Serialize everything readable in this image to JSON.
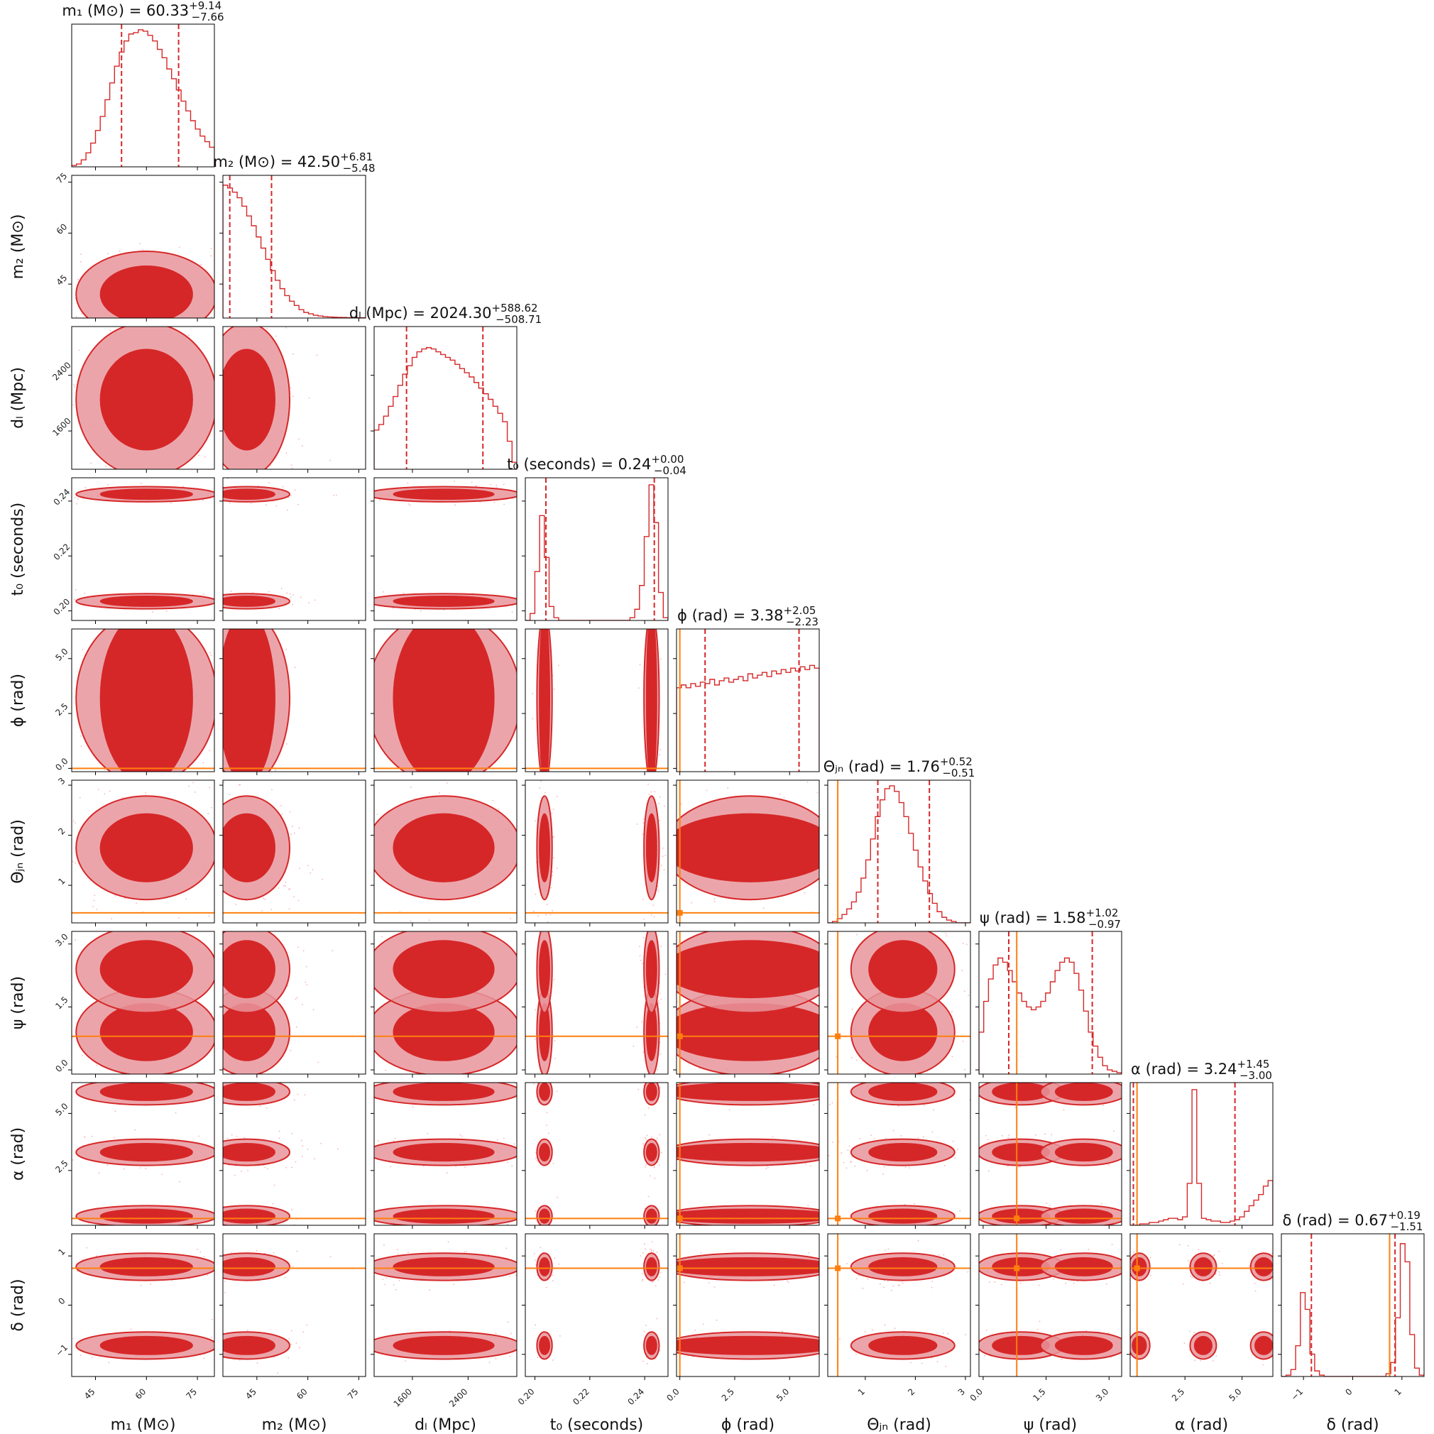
{
  "chart_data": {
    "type": "corner",
    "parameters": [
      {
        "key": "m1",
        "label": "m₁ (M⊙)",
        "title": {
          "main": "m₁ (M⊙) = 60.33",
          "plus": "+9.14",
          "minus": "−7.66"
        },
        "median": 60.33,
        "quantiles": [
          52.67,
          69.47
        ],
        "range": [
          38,
          80
        ],
        "ticks": [
          45,
          60,
          75
        ],
        "tick_labels": [
          "45",
          "60",
          "75"
        ]
      },
      {
        "key": "m2",
        "label": "m₂ (M⊙)",
        "title": {
          "main": "m₂ (M⊙) = 42.50",
          "plus": "+6.81",
          "minus": "−5.48"
        },
        "median": 42.5,
        "quantiles": [
          37.02,
          49.31
        ],
        "range": [
          35,
          77
        ],
        "ticks": [
          45,
          60,
          75
        ],
        "tick_labels": [
          "45",
          "60",
          "75"
        ]
      },
      {
        "key": "dL",
        "label": "dₗ (Mpc)",
        "title": {
          "main": "dₗ (Mpc) = 2024.30",
          "plus": "+588.62",
          "minus": "−508.71"
        },
        "median": 2024.3,
        "quantiles": [
          1515.59,
          2612.92
        ],
        "range": [
          1050,
          3100
        ],
        "ticks": [
          1600,
          2400
        ],
        "tick_labels": [
          "1600",
          "2400"
        ]
      },
      {
        "key": "t0",
        "label": "t₀ (seconds)",
        "title": {
          "main": "t₀ (seconds) = 0.24",
          "plus": "+0.00",
          "minus": "−0.04"
        },
        "median": 0.24,
        "quantiles": [
          0.204,
          0.2435
        ],
        "range": [
          0.1965,
          0.2485
        ],
        "ticks": [
          0.2,
          0.22,
          0.24
        ],
        "tick_labels": [
          "0.20",
          "0.22",
          "0.24"
        ]
      },
      {
        "key": "phi",
        "label": "ϕ (rad)",
        "title": {
          "main": "ϕ (rad) = 3.38",
          "plus": "+2.05",
          "minus": "−2.23"
        },
        "median": 3.38,
        "quantiles": [
          1.15,
          5.43
        ],
        "range": [
          -0.15,
          6.35
        ],
        "ticks": [
          0.0,
          2.5,
          5.0
        ],
        "tick_labels": [
          "0.0",
          "2.5",
          "5.0"
        ]
      },
      {
        "key": "theta_jn",
        "label": "Θⱼₙ (rad)",
        "title": {
          "main": "Θⱼₙ (rad) = 1.76",
          "plus": "+0.52",
          "minus": "−0.51"
        },
        "median": 1.76,
        "quantiles": [
          1.25,
          2.28
        ],
        "range": [
          0.25,
          3.1
        ],
        "ticks": [
          1,
          2,
          3
        ],
        "tick_labels": [
          "1",
          "2",
          "3"
        ]
      },
      {
        "key": "psi",
        "label": "ψ (rad)",
        "title": {
          "main": "ψ (rad) = 1.58",
          "plus": "+1.02",
          "minus": "−0.97"
        },
        "median": 1.58,
        "quantiles": [
          0.61,
          2.6
        ],
        "range": [
          -0.1,
          3.3
        ],
        "ticks": [
          0.0,
          1.5,
          3.0
        ],
        "tick_labels": [
          "0.0",
          "1.5",
          "3.0"
        ]
      },
      {
        "key": "alpha",
        "label": "α (rad)",
        "title": {
          "main": "α (rad) = 3.24",
          "plus": "+1.45",
          "minus": "−3.00"
        },
        "median": 3.24,
        "quantiles": [
          0.24,
          4.69
        ],
        "range": [
          0.1,
          6.35
        ],
        "ticks": [
          2.5,
          5.0
        ],
        "tick_labels": [
          "2.5",
          "5.0"
        ]
      },
      {
        "key": "delta",
        "label": "δ (rad)",
        "title": {
          "main": "δ (rad) = 0.67",
          "plus": "+0.19",
          "minus": "−1.51"
        },
        "median": 0.67,
        "quantiles": [
          -0.84,
          0.86
        ],
        "range": [
          -1.45,
          1.45
        ],
        "ticks": [
          -1,
          0,
          1
        ],
        "tick_labels": [
          "−1",
          "0",
          "1"
        ]
      }
    ],
    "truths": {
      "phi": 0.0,
      "theta_jn": 0.45,
      "psi": 0.8,
      "alpha": 0.4,
      "delta": 0.75
    },
    "histograms": {
      "m1": [
        0.01,
        0.02,
        0.05,
        0.1,
        0.17,
        0.26,
        0.36,
        0.48,
        0.6,
        0.72,
        0.82,
        0.9,
        0.95,
        0.96,
        0.98,
        0.97,
        0.94,
        0.9,
        0.84,
        0.78,
        0.7,
        0.63,
        0.55,
        0.47,
        0.4,
        0.33,
        0.27,
        0.22,
        0.18,
        0.14
      ],
      "m2": [
        0.95,
        0.93,
        0.9,
        0.86,
        0.8,
        0.73,
        0.66,
        0.58,
        0.5,
        0.42,
        0.34,
        0.27,
        0.21,
        0.16,
        0.12,
        0.09,
        0.06,
        0.04,
        0.03,
        0.02,
        0.015,
        0.01,
        0.008,
        0.006,
        0.005,
        0.004,
        0.003,
        0.003,
        0.002,
        0.002
      ],
      "dL": [
        0.28,
        0.32,
        0.38,
        0.45,
        0.52,
        0.6,
        0.68,
        0.74,
        0.8,
        0.84,
        0.86,
        0.87,
        0.86,
        0.84,
        0.82,
        0.8,
        0.78,
        0.75,
        0.72,
        0.69,
        0.66,
        0.62,
        0.58,
        0.54,
        0.5,
        0.45,
        0.4,
        0.34,
        0.2,
        0.05
      ],
      "t0": [
        0.0,
        0.05,
        0.35,
        0.75,
        0.45,
        0.1,
        0.02,
        0.0,
        0.0,
        0.0,
        0.0,
        0.0,
        0.0,
        0.0,
        0.0,
        0.0,
        0.0,
        0.0,
        0.0,
        0.0,
        0.0,
        0.0,
        0.02,
        0.08,
        0.25,
        0.6,
        0.97,
        0.7,
        0.2,
        0.02
      ],
      "phi": [
        0.6,
        0.62,
        0.6,
        0.63,
        0.61,
        0.64,
        0.63,
        0.66,
        0.62,
        0.65,
        0.67,
        0.64,
        0.66,
        0.68,
        0.65,
        0.7,
        0.67,
        0.69,
        0.71,
        0.68,
        0.72,
        0.7,
        0.73,
        0.71,
        0.74,
        0.72,
        0.75,
        0.73,
        0.76,
        0.74
      ],
      "theta_jn": [
        0.0,
        0.01,
        0.03,
        0.06,
        0.1,
        0.15,
        0.22,
        0.32,
        0.45,
        0.6,
        0.76,
        0.88,
        0.96,
        0.98,
        0.94,
        0.86,
        0.76,
        0.64,
        0.52,
        0.4,
        0.3,
        0.21,
        0.14,
        0.08,
        0.04,
        0.02,
        0.01,
        0.0,
        0.0,
        0.0
      ],
      "psi": [
        0.3,
        0.52,
        0.68,
        0.78,
        0.83,
        0.8,
        0.74,
        0.66,
        0.58,
        0.52,
        0.48,
        0.46,
        0.48,
        0.52,
        0.58,
        0.66,
        0.74,
        0.8,
        0.83,
        0.8,
        0.72,
        0.6,
        0.45,
        0.3,
        0.2,
        0.12,
        0.06,
        0.03,
        0.02,
        0.01
      ],
      "alpha": [
        0.0,
        0.0,
        0.01,
        0.01,
        0.02,
        0.02,
        0.03,
        0.04,
        0.05,
        0.05,
        0.04,
        0.06,
        0.3,
        0.97,
        0.3,
        0.05,
        0.04,
        0.03,
        0.03,
        0.02,
        0.02,
        0.03,
        0.04,
        0.06,
        0.1,
        0.14,
        0.18,
        0.22,
        0.28,
        0.32
      ],
      "delta": [
        0.0,
        0.01,
        0.05,
        0.22,
        0.6,
        0.48,
        0.16,
        0.04,
        0.01,
        0.0,
        0.0,
        0.0,
        0.0,
        0.0,
        0.0,
        0.0,
        0.0,
        0.0,
        0.0,
        0.0,
        0.0,
        0.0,
        0.02,
        0.1,
        0.42,
        0.95,
        0.82,
        0.3,
        0.06,
        0.01
      ]
    },
    "marginal_bins": {
      "m1": [
        38,
        80
      ],
      "m2": [
        35,
        77
      ],
      "dL": [
        1050,
        3100
      ],
      "t0": [
        0.1965,
        0.2485
      ],
      "phi": [
        -0.15,
        6.35
      ],
      "theta_jn": [
        0.25,
        3.1
      ],
      "psi": [
        -0.1,
        3.3
      ],
      "alpha": [
        0.1,
        6.35
      ],
      "delta": [
        -1.45,
        1.45
      ]
    },
    "modes": {
      "m1": [
        {
          "mean": 60,
          "sd": 9
        }
      ],
      "m2": [
        {
          "mean": 42,
          "sd": 5.5
        }
      ],
      "dL": [
        {
          "mean": 2050,
          "sd": 480
        }
      ],
      "t0": [
        {
          "mean": 0.2425,
          "sd": 0.0012,
          "w": 0.6
        },
        {
          "mean": 0.2035,
          "sd": 0.0012,
          "w": 0.4
        }
      ],
      "phi": [
        {
          "mean": 3.2,
          "sd": 3.0
        }
      ],
      "theta_jn": [
        {
          "mean": 1.75,
          "sd": 0.45
        }
      ],
      "psi": [
        {
          "mean": 0.9,
          "sd": 0.45,
          "w": 0.5
        },
        {
          "mean": 2.4,
          "sd": 0.45,
          "w": 0.5
        }
      ],
      "alpha": [
        {
          "mean": 3.3,
          "sd": 0.25,
          "w": 0.55
        },
        {
          "mean": 0.5,
          "sd": 0.2,
          "w": 0.2
        },
        {
          "mean": 5.95,
          "sd": 0.25,
          "w": 0.25
        }
      ],
      "delta": [
        {
          "mean": 0.78,
          "sd": 0.12,
          "w": 0.65
        },
        {
          "mean": -0.82,
          "sd": 0.12,
          "w": 0.35
        }
      ]
    },
    "style": {
      "color": "#d62728",
      "fill_light": "#e8959b",
      "fill_dark": "#d62728",
      "truth_color": "#ff7f0e",
      "scatter_color": "#f5b3b8"
    }
  }
}
